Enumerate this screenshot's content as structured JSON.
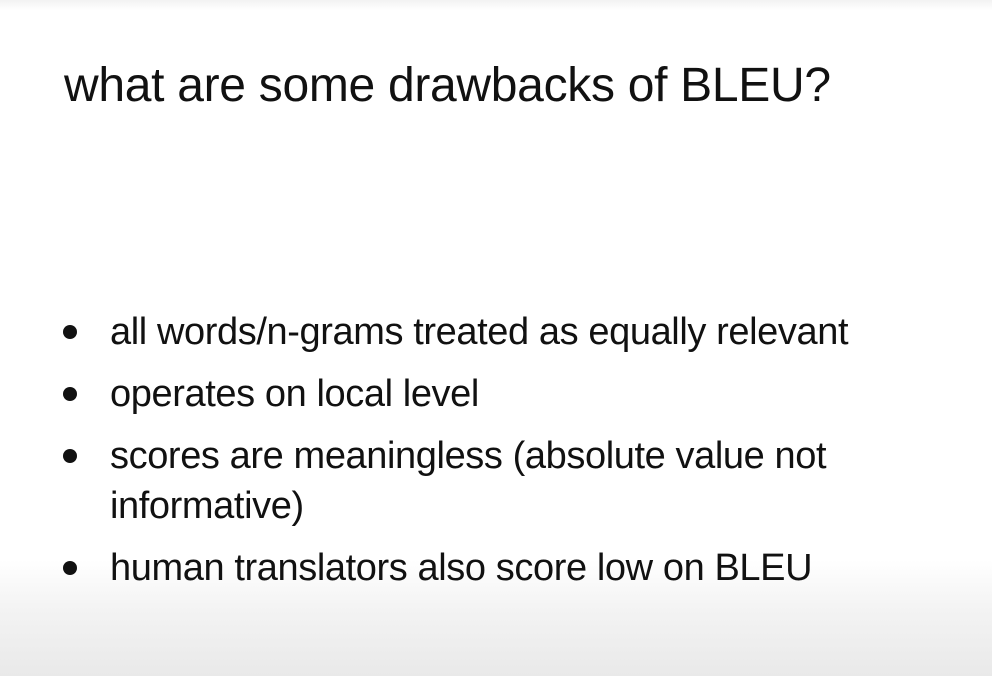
{
  "slide": {
    "title": "what are some drawbacks of BLEU?",
    "bullets": [
      {
        "text": "all words/n-grams treated as equally relevant"
      },
      {
        "text": "operates on local level"
      },
      {
        "text": "scores are meaningless (absolute value not informative)"
      },
      {
        "text": "human translators also score low on BLEU"
      }
    ]
  }
}
